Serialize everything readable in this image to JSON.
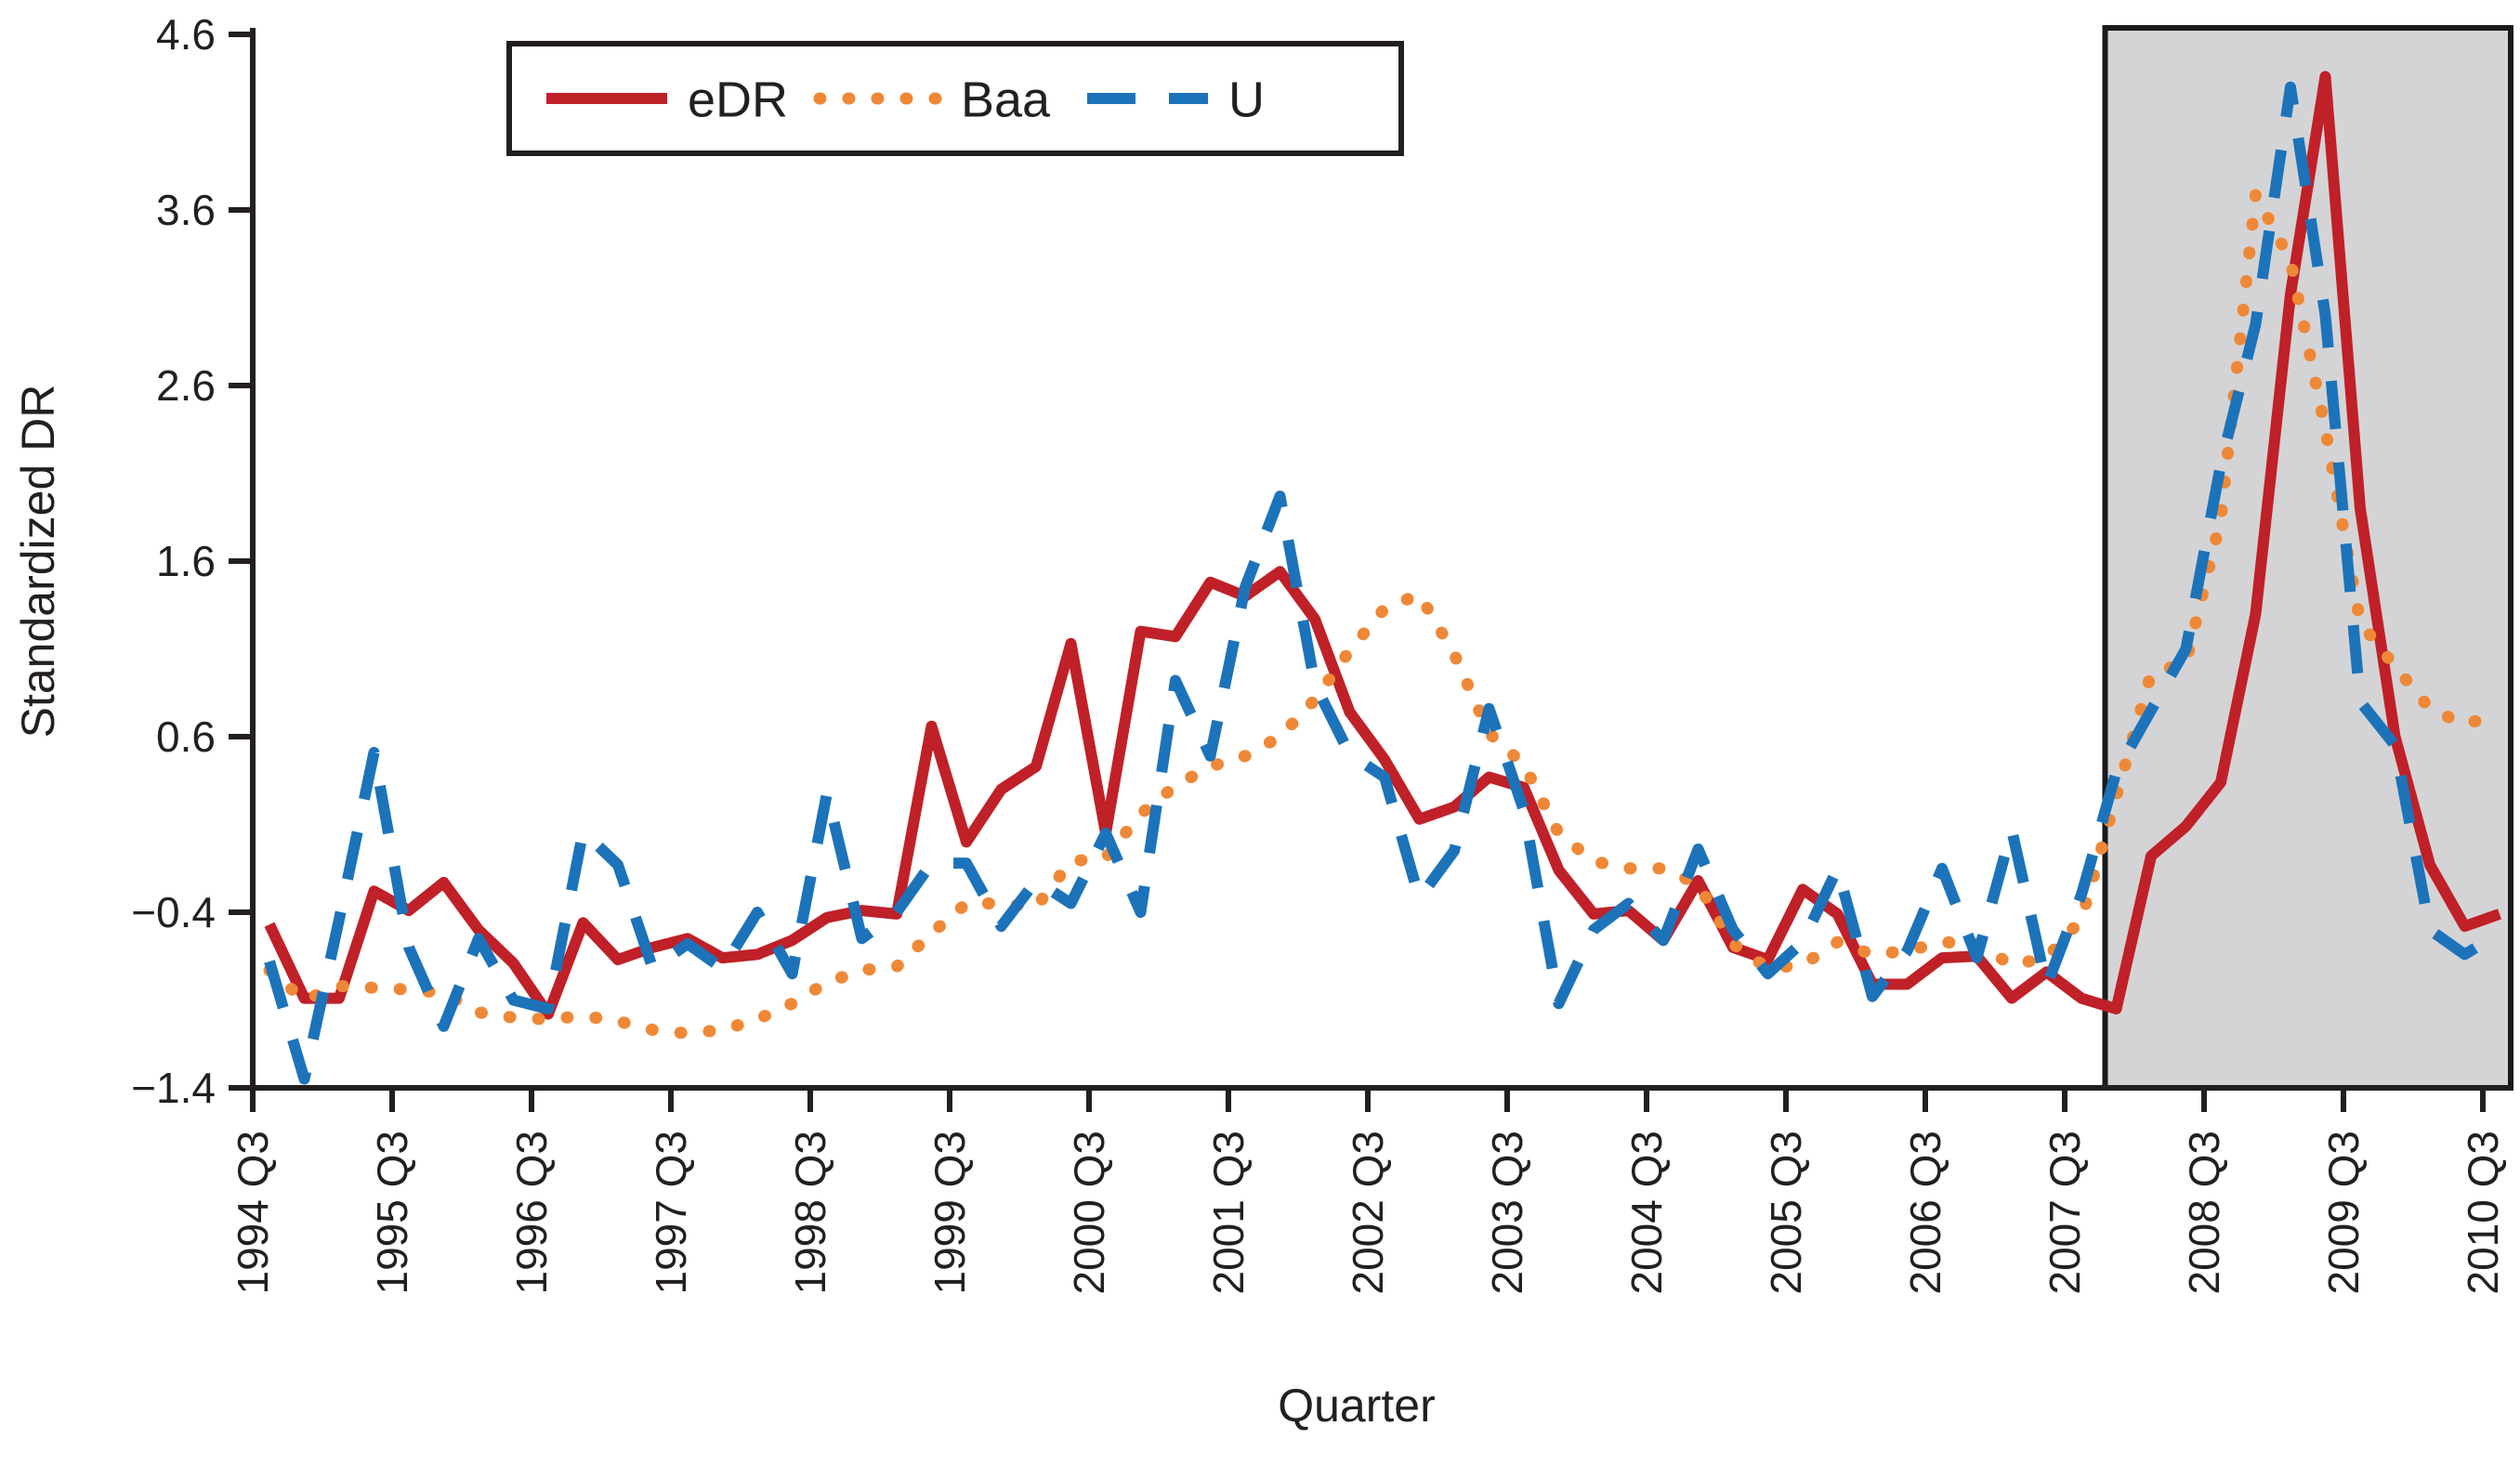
{
  "chart_data": {
    "type": "line",
    "title": "",
    "xlabel": "Quarter",
    "ylabel": "Standardized DR",
    "ylim": [
      -1.4,
      4.6
    ],
    "yticks": [
      4.6,
      3.6,
      2.6,
      1.6,
      0.6,
      -0.4,
      -1.4
    ],
    "x_tick_labels": [
      "1994 Q3",
      "1995 Q3",
      "1996 Q3",
      "1997 Q3",
      "1998 Q3",
      "1999 Q3",
      "2000 Q3",
      "2001 Q3",
      "2002 Q3",
      "2003 Q3",
      "2004 Q3",
      "2005 Q3",
      "2006 Q3",
      "2007 Q3",
      "2008 Q3",
      "2009 Q3",
      "2010 Q3"
    ],
    "x_start_label": "1994 Q3",
    "x_end_label": "2010 Q3",
    "x_step": "quarter",
    "grid": false,
    "legend_position": "top-left-inside",
    "shaded_region": {
      "from_point_index": 53,
      "to_end": true,
      "fill": "#d4d4d6",
      "border": "#1a1a1a"
    },
    "series": [
      {
        "name": "eDR",
        "style": "solid",
        "color": "#c02027",
        "values": [
          -0.47,
          -0.89,
          -0.89,
          -0.28,
          -0.39,
          -0.23,
          -0.5,
          -0.69,
          -0.98,
          -0.46,
          -0.67,
          -0.6,
          -0.55,
          -0.66,
          -0.64,
          -0.56,
          -0.43,
          -0.39,
          -0.41,
          0.66,
          0.0,
          0.3,
          0.43,
          1.13,
          0.05,
          1.2,
          1.17,
          1.48,
          1.4,
          1.54,
          1.27,
          0.74,
          0.47,
          0.13,
          0.2,
          0.37,
          0.31,
          -0.16,
          -0.41,
          -0.39,
          -0.56,
          -0.22,
          -0.6,
          -0.67,
          -0.27,
          -0.41,
          -0.81,
          -0.81,
          -0.66,
          -0.65,
          -0.89,
          -0.74,
          -0.89,
          -0.95,
          -0.08,
          0.09,
          0.34,
          1.3,
          3.12,
          4.36,
          1.9,
          0.6,
          -0.13,
          -0.48,
          -0.41
        ]
      },
      {
        "name": "Baa",
        "style": "dotted",
        "color": "#ef8836",
        "values": [
          -0.73,
          -0.9,
          -0.82,
          -0.83,
          -0.84,
          -0.86,
          -0.97,
          -1.0,
          -1.01,
          -0.99,
          -1.02,
          -1.07,
          -1.09,
          -1.07,
          -1.01,
          -0.92,
          -0.8,
          -0.73,
          -0.71,
          -0.52,
          -0.35,
          -0.35,
          -0.37,
          -0.11,
          -0.09,
          0.16,
          0.32,
          0.43,
          0.49,
          0.6,
          0.81,
          1.09,
          1.33,
          1.41,
          1.07,
          0.62,
          0.44,
          0.05,
          -0.11,
          -0.15,
          -0.15,
          -0.24,
          -0.58,
          -0.72,
          -0.7,
          -0.57,
          -0.64,
          -0.62,
          -0.57,
          -0.58,
          -0.7,
          -0.66,
          -0.44,
          0.26,
          0.96,
          1.02,
          1.84,
          3.69,
          3.31,
          2.35,
          1.25,
          1.0,
          0.76,
          0.67,
          0.73
        ]
      },
      {
        "name": "U",
        "style": "dashed",
        "color": "#1c73ba",
        "values": [
          -0.68,
          -1.35,
          -0.44,
          0.51,
          -0.6,
          -1.05,
          -0.55,
          -0.9,
          -0.95,
          0.06,
          -0.13,
          -0.72,
          -0.58,
          -0.72,
          -0.4,
          -0.75,
          0.28,
          -0.55,
          -0.4,
          -0.12,
          -0.12,
          -0.48,
          -0.22,
          -0.35,
          0.05,
          -0.4,
          0.92,
          0.49,
          1.45,
          1.97,
          0.9,
          0.5,
          0.37,
          -0.32,
          -0.05,
          0.76,
          0.18,
          -0.92,
          -0.5,
          -0.35,
          -0.56,
          -0.04,
          -0.5,
          -0.75,
          -0.57,
          -0.15,
          -0.88,
          -0.62,
          -0.15,
          -0.66,
          0.07,
          -0.82,
          -0.3,
          0.4,
          0.75,
          1.1,
          2.15,
          2.95,
          4.3,
          3.0,
          0.8,
          0.55,
          -0.5,
          -0.64,
          -0.52
        ]
      }
    ]
  },
  "axis_text": {
    "y_label": "Standardized DR",
    "x_label": "Quarter"
  },
  "legend": {
    "items": [
      {
        "label": "eDR"
      },
      {
        "label": "Baa"
      },
      {
        "label": "U"
      }
    ]
  }
}
